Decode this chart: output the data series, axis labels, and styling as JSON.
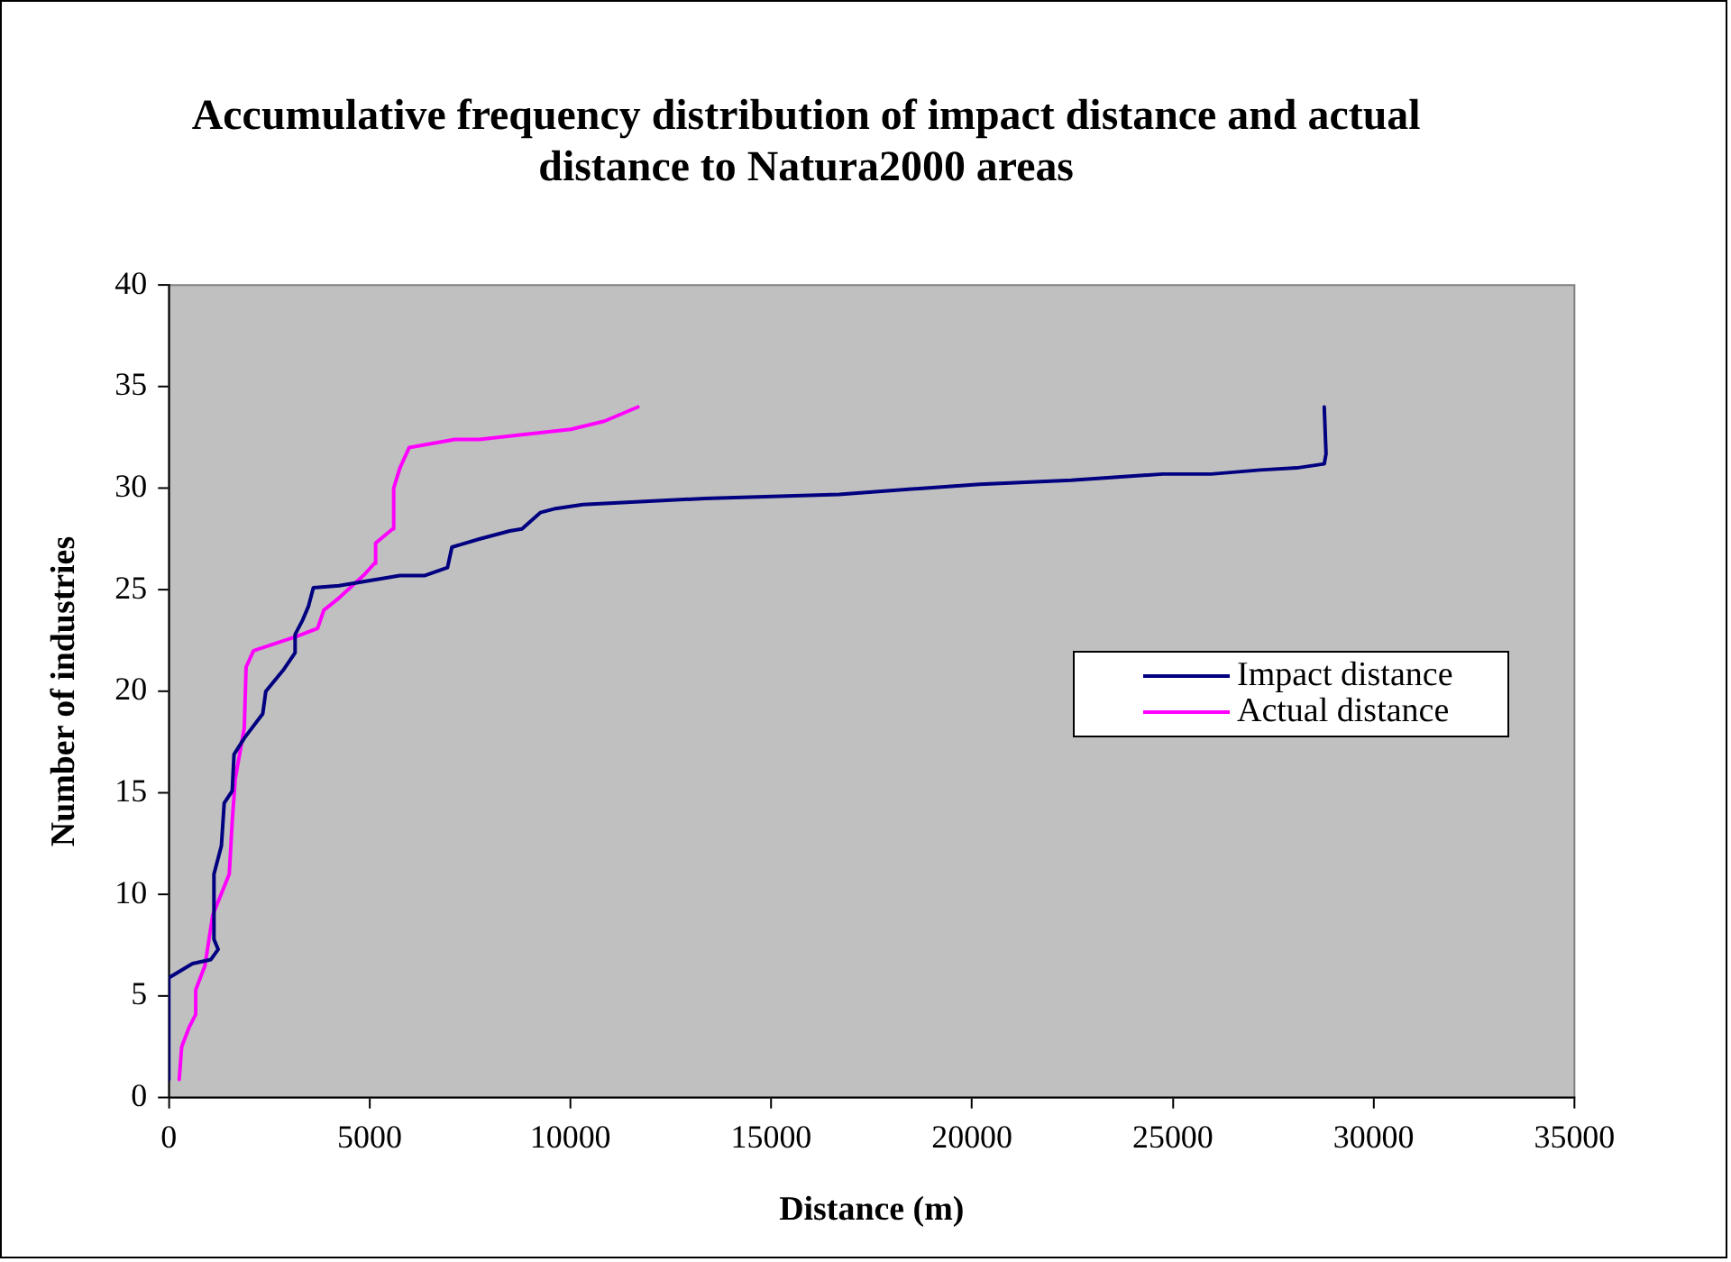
{
  "chart_data": {
    "type": "line",
    "title": "Accumulative frequency distribution of impact distance and actual distance to Natura2000 areas",
    "xlabel": "Distance (m)",
    "ylabel": "Number of industries",
    "xlim": [
      0,
      35000
    ],
    "xticks": [
      0,
      5000,
      10000,
      15000,
      20000,
      25000,
      30000,
      35000
    ],
    "ylim": [
      0,
      40
    ],
    "yticks": [
      0,
      5,
      10,
      15,
      20,
      25,
      30,
      35,
      40
    ],
    "grid": false,
    "legend": "right",
    "marker": "none",
    "line_style": "solid",
    "series": [
      {
        "name": "Impact distance",
        "color": "#000080",
        "x": [
          0,
          0,
          590,
          1050,
          1230,
          1125,
          1125,
          1310,
          1380,
          1580,
          1625,
          1880,
          2340,
          2415,
          2870,
          3145,
          3145,
          3330,
          3480,
          3600,
          4240,
          5755,
          6365,
          6940,
          7050,
          7730,
          8490,
          8795,
          9250,
          9630,
          10310,
          13350,
          16690,
          20190,
          22470,
          24745,
          25960,
          27175,
          28085,
          28770,
          28815,
          28770
        ],
        "values": [
          0.9,
          5.9,
          6.6,
          6.8,
          7.3,
          7.8,
          11,
          12.4,
          14.5,
          15.1,
          16.9,
          17.7,
          18.9,
          20,
          21.1,
          21.9,
          22.8,
          23.5,
          24.2,
          25.1,
          25.2,
          25.7,
          25.7,
          26.1,
          27.1,
          27.5,
          27.9,
          28,
          28.8,
          29,
          29.2,
          29.5,
          29.7,
          30.2,
          30.4,
          30.7,
          30.7,
          30.9,
          31,
          31.2,
          31.7,
          34
        ]
      },
      {
        "name": "Actual distance",
        "color": "#ff00ff",
        "x": [
          260,
          320,
          515,
          670,
          670,
          900,
          1095,
          1505,
          1580,
          1655,
          1880,
          1925,
          2110,
          3175,
          3705,
          3860,
          4240,
          4845,
          5120,
          5150,
          5575,
          5600,
          5755,
          5985,
          7120,
          7730,
          10010,
          10845,
          11680
        ],
        "values": [
          0.9,
          2.5,
          3.5,
          4.1,
          5.3,
          6.5,
          9,
          11,
          13.6,
          15.7,
          18.2,
          21.2,
          22,
          22.7,
          23.1,
          24,
          24.6,
          25.7,
          26.3,
          27.3,
          28,
          30,
          31,
          32,
          32.4,
          32.4,
          32.9,
          33.3,
          34
        ]
      }
    ]
  }
}
